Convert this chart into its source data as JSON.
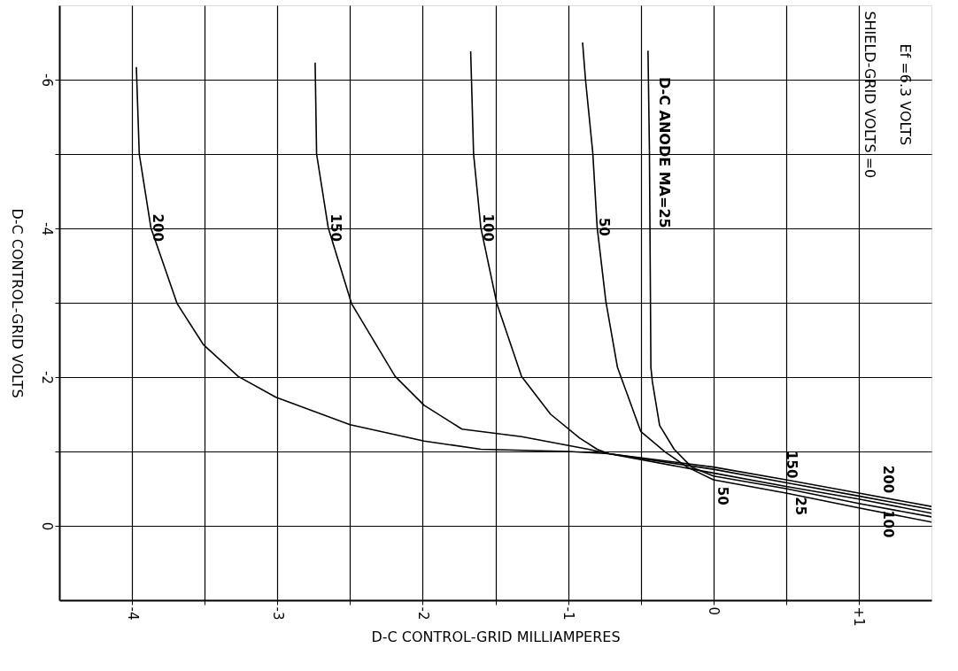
{
  "chart_data": {
    "type": "line",
    "xlabel": "D-C CONTROL-GRID MILLIAMPERES",
    "ylabel": "D-C CONTROL-GRID VOLTS",
    "xlim": [
      -4.5,
      1.5
    ],
    "ylim": [
      1,
      -7
    ],
    "xticks": [
      -4,
      {
        "value": -3.5,
        "label": null
      },
      -3,
      {
        "value": -2.5,
        "label": null
      },
      -2,
      {
        "value": -1.5,
        "label": null
      },
      -1,
      {
        "value": -0.5,
        "label": null
      },
      0,
      {
        "value": 0.5,
        "label": null
      },
      {
        "value": 1,
        "label": "+1"
      }
    ],
    "yticks": [
      -6,
      {
        "value": -5,
        "label": null
      },
      -4,
      {
        "value": -3,
        "label": null
      },
      -2,
      {
        "value": -1,
        "label": null
      },
      0
    ],
    "grid": true,
    "legend": false,
    "marker": "none",
    "line_style": "solid",
    "series": [
      {
        "name": "200",
        "color": "#000000",
        "x": [
          -3.97,
          -3.95,
          -3.87,
          -3.69,
          -3.51,
          -3.27,
          -3.01,
          -2.5,
          -1.99,
          -1.6,
          -1.0,
          -0.72,
          0,
          0.5,
          1.0,
          1.5
        ],
        "values": [
          -6.17,
          -5.0,
          -4.01,
          -2.99,
          -2.44,
          -2.01,
          -1.73,
          -1.36,
          -1.14,
          -1.03,
          -1.0,
          -0.97,
          -0.79,
          -0.62,
          -0.44,
          -0.26
        ]
      },
      {
        "name": "150",
        "color": "#000000",
        "x": [
          -2.74,
          -2.73,
          -2.65,
          -2.49,
          -2.19,
          -1.99,
          -1.73,
          -1.32,
          -0.86,
          -0.72,
          0,
          0.5,
          1.0,
          1.5
        ],
        "values": [
          -6.23,
          -5.0,
          -4.01,
          -2.99,
          -2.01,
          -1.62,
          -1.3,
          -1.2,
          -1.03,
          -0.97,
          -0.76,
          -0.58,
          -0.4,
          -0.22
        ]
      },
      {
        "name": "100",
        "color": "#000000",
        "x": [
          -1.67,
          -1.65,
          -1.6,
          -1.49,
          -1.32,
          -1.12,
          -0.92,
          -0.8,
          -0.72,
          0,
          0.5,
          1.0,
          1.5
        ],
        "values": [
          -6.38,
          -5.0,
          -4.01,
          -2.99,
          -2.01,
          -1.5,
          -1.18,
          -1.03,
          -0.97,
          -0.71,
          -0.53,
          -0.36,
          -0.17
        ]
      },
      {
        "name": "50",
        "color": "#000000",
        "x": [
          -0.9,
          -0.88,
          -0.83,
          -0.8,
          -0.74,
          -0.66,
          -0.5,
          -0.33,
          -0.18,
          0,
          0.5,
          1.0,
          1.5
        ],
        "values": [
          -6.5,
          -6.0,
          -5.02,
          -4.02,
          -3.02,
          -2.13,
          -1.27,
          -0.99,
          -0.79,
          -0.62,
          -0.44,
          -0.24,
          -0.05
        ]
      },
      {
        "name": "25",
        "color": "#000000",
        "x": [
          -0.45,
          -0.44,
          -0.43,
          -0.42,
          -0.37,
          -0.27,
          -0.15,
          0,
          0.5,
          1.0,
          1.5
        ],
        "values": [
          -6.39,
          -5.02,
          -2.13,
          -1.94,
          -1.35,
          -1.03,
          -0.79,
          -0.67,
          -0.5,
          -0.3,
          -0.12
        ]
      }
    ],
    "annotations": [
      {
        "text": "D-C ANODE MA=25",
        "x": -0.44,
        "y": -5.02
      },
      "Ef =6.3 VOLTS",
      "SHIELD-GRID VOLTS =0"
    ]
  }
}
